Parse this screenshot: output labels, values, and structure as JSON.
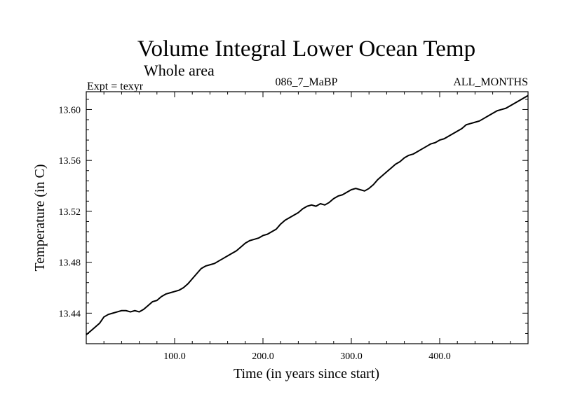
{
  "chart_data": {
    "type": "line",
    "title": "Volume Integral Lower Ocean Temp",
    "subtitle": "Whole area",
    "experiment_label": "Expt = texyr",
    "run_label": "086_7_MaBP",
    "period_label": "ALL_MONTHS",
    "xlabel": "Time (in years since start)",
    "ylabel": "Temperature (in C)",
    "xlim": [
      0,
      500
    ],
    "ylim": [
      13.416,
      13.614
    ],
    "xticks": [
      100,
      200,
      300,
      400
    ],
    "xtick_labels": [
      "100.0",
      "200.0",
      "300.0",
      "400.0"
    ],
    "yticks": [
      13.44,
      13.48,
      13.52,
      13.56,
      13.6
    ],
    "ytick_labels": [
      "13.44",
      "13.48",
      "13.52",
      "13.56",
      "13.60"
    ],
    "grid": false,
    "line_color": "#000000",
    "series": [
      {
        "x": [
          0,
          5,
          10,
          15,
          20,
          25,
          30,
          35,
          40,
          45,
          50,
          55,
          60,
          65,
          70,
          75,
          80,
          85,
          90,
          95,
          100,
          105,
          110,
          115,
          120,
          125,
          130,
          135,
          140,
          145,
          150,
          155,
          160,
          165,
          170,
          175,
          180,
          185,
          190,
          195,
          200,
          205,
          210,
          215,
          220,
          225,
          230,
          235,
          240,
          245,
          250,
          255,
          260,
          265,
          270,
          275,
          280,
          285,
          290,
          295,
          300,
          305,
          310,
          315,
          320,
          325,
          330,
          335,
          340,
          345,
          350,
          355,
          360,
          365,
          370,
          375,
          380,
          385,
          390,
          395,
          400,
          405,
          410,
          415,
          420,
          425,
          430,
          435,
          440,
          445,
          450,
          455,
          460,
          465,
          470,
          475,
          480,
          485,
          490,
          495,
          500
        ],
        "values": [
          13.423,
          13.426,
          13.429,
          13.432,
          13.437,
          13.439,
          13.44,
          13.441,
          13.442,
          13.442,
          13.441,
          13.442,
          13.441,
          13.443,
          13.446,
          13.449,
          13.45,
          13.453,
          13.455,
          13.456,
          13.457,
          13.458,
          13.46,
          13.463,
          13.467,
          13.471,
          13.475,
          13.477,
          13.478,
          13.479,
          13.481,
          13.483,
          13.485,
          13.487,
          13.489,
          13.492,
          13.495,
          13.497,
          13.498,
          13.499,
          13.501,
          13.502,
          13.504,
          13.506,
          13.51,
          13.513,
          13.515,
          13.517,
          13.519,
          13.522,
          13.524,
          13.525,
          13.524,
          13.526,
          13.525,
          13.527,
          13.53,
          13.532,
          13.533,
          13.535,
          13.537,
          13.538,
          13.537,
          13.536,
          13.538,
          13.541,
          13.545,
          13.548,
          13.551,
          13.554,
          13.557,
          13.559,
          13.562,
          13.564,
          13.565,
          13.567,
          13.569,
          13.571,
          13.573,
          13.574,
          13.576,
          13.577,
          13.579,
          13.581,
          13.583,
          13.585,
          13.588,
          13.589,
          13.59,
          13.591,
          13.593,
          13.595,
          13.597,
          13.599,
          13.6,
          13.601,
          13.603,
          13.605,
          13.607,
          13.609,
          13.611
        ]
      }
    ]
  }
}
